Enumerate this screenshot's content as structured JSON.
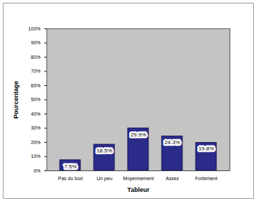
{
  "chart_data": {
    "type": "bar",
    "x_label": "Tableur",
    "y_label": "Pourcentage",
    "categories": [
      "Pas du tout",
      "Un peu",
      "Moyennement",
      "Assez",
      "Fortement"
    ],
    "values": [
      7.5,
      18.5,
      29.9,
      24.3,
      19.8
    ],
    "value_labels": [
      "7.5%",
      "18.5%",
      "29.9%",
      "24.3%",
      "19.8%"
    ],
    "data_labels": true,
    "color": "#2b2b8a",
    "ylim": [
      0,
      100
    ],
    "yticks": [
      {
        "value": 0,
        "label": "0%"
      },
      {
        "value": 10,
        "label": "10%"
      },
      {
        "value": 20,
        "label": "20%"
      },
      {
        "value": 30,
        "label": "30%"
      },
      {
        "value": 40,
        "label": "40%"
      },
      {
        "value": 50,
        "label": "50%"
      },
      {
        "value": 60,
        "label": "60%"
      },
      {
        "value": 70,
        "label": "70%"
      },
      {
        "value": 80,
        "label": "80%"
      },
      {
        "value": 90,
        "label": "90%"
      },
      {
        "value": 100,
        "label": "100%"
      }
    ],
    "grid": false
  }
}
